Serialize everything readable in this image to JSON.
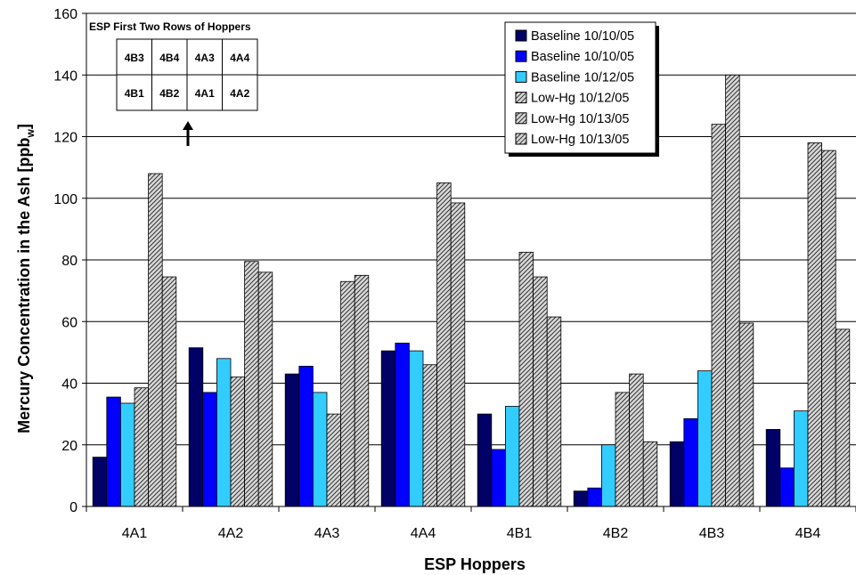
{
  "chart_data": {
    "type": "bar",
    "categories": [
      "4A1",
      "4A2",
      "4A3",
      "4A4",
      "4B1",
      "4B2",
      "4B3",
      "4B4"
    ],
    "ylabel_main": "Mercury Concentration in the Ash [ppb",
    "ylabel_sub": "w",
    "ylabel_end": "]",
    "xlabel": "ESP Hoppers",
    "ylim": [
      0,
      160
    ],
    "yticks": [
      "0",
      "20",
      "40",
      "60",
      "80",
      "100",
      "120",
      "140",
      "160"
    ],
    "grid": true,
    "legend_position": "top-right",
    "series": [
      {
        "name": "Baseline 10/10/05",
        "color": "#000066",
        "pattern": "solid",
        "values": [
          16,
          51.5,
          43,
          50.5,
          30,
          5,
          21,
          25
        ]
      },
      {
        "name": "Baseline 10/10/05",
        "color": "#0000ff",
        "pattern": "solid",
        "values": [
          35.5,
          37,
          45.5,
          53,
          18.5,
          6,
          28.5,
          12.5
        ]
      },
      {
        "name": "Baseline 10/12/05",
        "color": "#33ccff",
        "pattern": "solid",
        "values": [
          33.5,
          48,
          37,
          50.5,
          32.5,
          20,
          44,
          31
        ]
      },
      {
        "name": "Low-Hg 10/12/05",
        "color": "#d9d9d9",
        "pattern": "hatch",
        "values": [
          38.5,
          42,
          30,
          46,
          82.5,
          37,
          124,
          118
        ]
      },
      {
        "name": "Low-Hg 10/13/05",
        "color": "#d9d9d9",
        "pattern": "hatch",
        "values": [
          108,
          79.5,
          73,
          105,
          74.5,
          43,
          140,
          115.5
        ]
      },
      {
        "name": "Low-Hg 10/13/05",
        "color": "#d9d9d9",
        "pattern": "hatch",
        "values": [
          74.5,
          76,
          75,
          98.5,
          61.5,
          21,
          59.5,
          57.5
        ]
      }
    ],
    "inset": {
      "title": "ESP First Two Rows of Hoppers",
      "rows": [
        [
          "4B3",
          "4B4",
          "4A3",
          "4A4"
        ],
        [
          "4B1",
          "4B2",
          "4A1",
          "4A2"
        ]
      ]
    }
  }
}
